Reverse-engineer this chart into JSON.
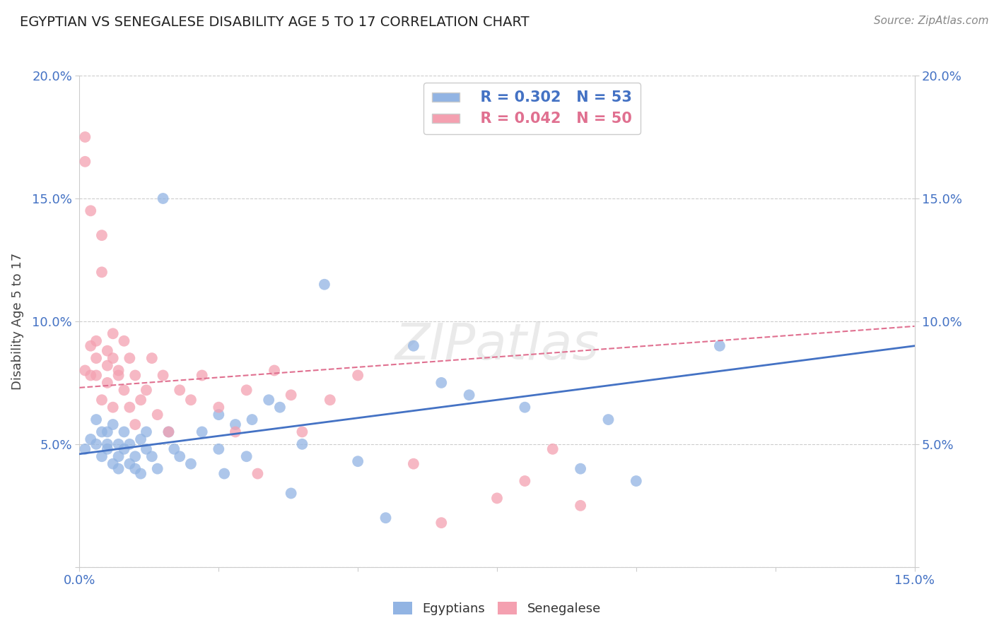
{
  "title": "EGYPTIAN VS SENEGALESE DISABILITY AGE 5 TO 17 CORRELATION CHART",
  "source": "Source: ZipAtlas.com",
  "ylabel": "Disability Age 5 to 17",
  "xlim": [
    0.0,
    0.15
  ],
  "ylim": [
    0.0,
    0.2
  ],
  "xtick_labels": [
    "0.0%",
    "",
    "",
    "",
    "",
    "",
    "15.0%"
  ],
  "ytick_labels": [
    "",
    "5.0%",
    "10.0%",
    "15.0%",
    "20.0%"
  ],
  "legend_r_egyptian": "R = 0.302",
  "legend_n_egyptian": "N = 53",
  "legend_r_senegalese": "R = 0.042",
  "legend_n_senegalese": "N = 50",
  "egyptian_color": "#92B4E3",
  "senegalese_color": "#F4A0B0",
  "egyptian_line_color": "#4472C4",
  "senegalese_line_color": "#E07090",
  "egyptians_x": [
    0.001,
    0.002,
    0.003,
    0.003,
    0.004,
    0.004,
    0.005,
    0.005,
    0.005,
    0.006,
    0.006,
    0.007,
    0.007,
    0.007,
    0.008,
    0.008,
    0.009,
    0.009,
    0.01,
    0.01,
    0.011,
    0.011,
    0.012,
    0.012,
    0.013,
    0.014,
    0.015,
    0.016,
    0.017,
    0.018,
    0.02,
    0.022,
    0.025,
    0.025,
    0.026,
    0.028,
    0.03,
    0.031,
    0.034,
    0.036,
    0.038,
    0.04,
    0.044,
    0.05,
    0.055,
    0.06,
    0.065,
    0.07,
    0.08,
    0.09,
    0.095,
    0.1,
    0.115
  ],
  "egyptians_y": [
    0.048,
    0.052,
    0.05,
    0.06,
    0.055,
    0.045,
    0.05,
    0.055,
    0.048,
    0.042,
    0.058,
    0.05,
    0.04,
    0.045,
    0.055,
    0.048,
    0.042,
    0.05,
    0.045,
    0.04,
    0.052,
    0.038,
    0.048,
    0.055,
    0.045,
    0.04,
    0.15,
    0.055,
    0.048,
    0.045,
    0.042,
    0.055,
    0.062,
    0.048,
    0.038,
    0.058,
    0.045,
    0.06,
    0.068,
    0.065,
    0.03,
    0.05,
    0.115,
    0.043,
    0.02,
    0.09,
    0.075,
    0.07,
    0.065,
    0.04,
    0.06,
    0.035,
    0.09
  ],
  "senegalese_x": [
    0.001,
    0.001,
    0.001,
    0.002,
    0.002,
    0.002,
    0.003,
    0.003,
    0.003,
    0.004,
    0.004,
    0.004,
    0.005,
    0.005,
    0.005,
    0.006,
    0.006,
    0.006,
    0.007,
    0.007,
    0.008,
    0.008,
    0.009,
    0.009,
    0.01,
    0.01,
    0.011,
    0.012,
    0.013,
    0.014,
    0.015,
    0.016,
    0.018,
    0.02,
    0.022,
    0.025,
    0.028,
    0.03,
    0.032,
    0.035,
    0.038,
    0.04,
    0.045,
    0.05,
    0.06,
    0.065,
    0.075,
    0.08,
    0.085,
    0.09
  ],
  "senegalese_y": [
    0.175,
    0.165,
    0.08,
    0.145,
    0.09,
    0.078,
    0.085,
    0.092,
    0.078,
    0.135,
    0.12,
    0.068,
    0.082,
    0.088,
    0.075,
    0.085,
    0.095,
    0.065,
    0.078,
    0.08,
    0.092,
    0.072,
    0.085,
    0.065,
    0.078,
    0.058,
    0.068,
    0.072,
    0.085,
    0.062,
    0.078,
    0.055,
    0.072,
    0.068,
    0.078,
    0.065,
    0.055,
    0.072,
    0.038,
    0.08,
    0.07,
    0.055,
    0.068,
    0.078,
    0.042,
    0.018,
    0.028,
    0.035,
    0.048,
    0.025
  ],
  "eg_line_x0": 0.0,
  "eg_line_x1": 0.15,
  "eg_line_y0": 0.046,
  "eg_line_y1": 0.09,
  "sn_line_x0": 0.0,
  "sn_line_x1": 0.15,
  "sn_line_y0": 0.073,
  "sn_line_y1": 0.098
}
